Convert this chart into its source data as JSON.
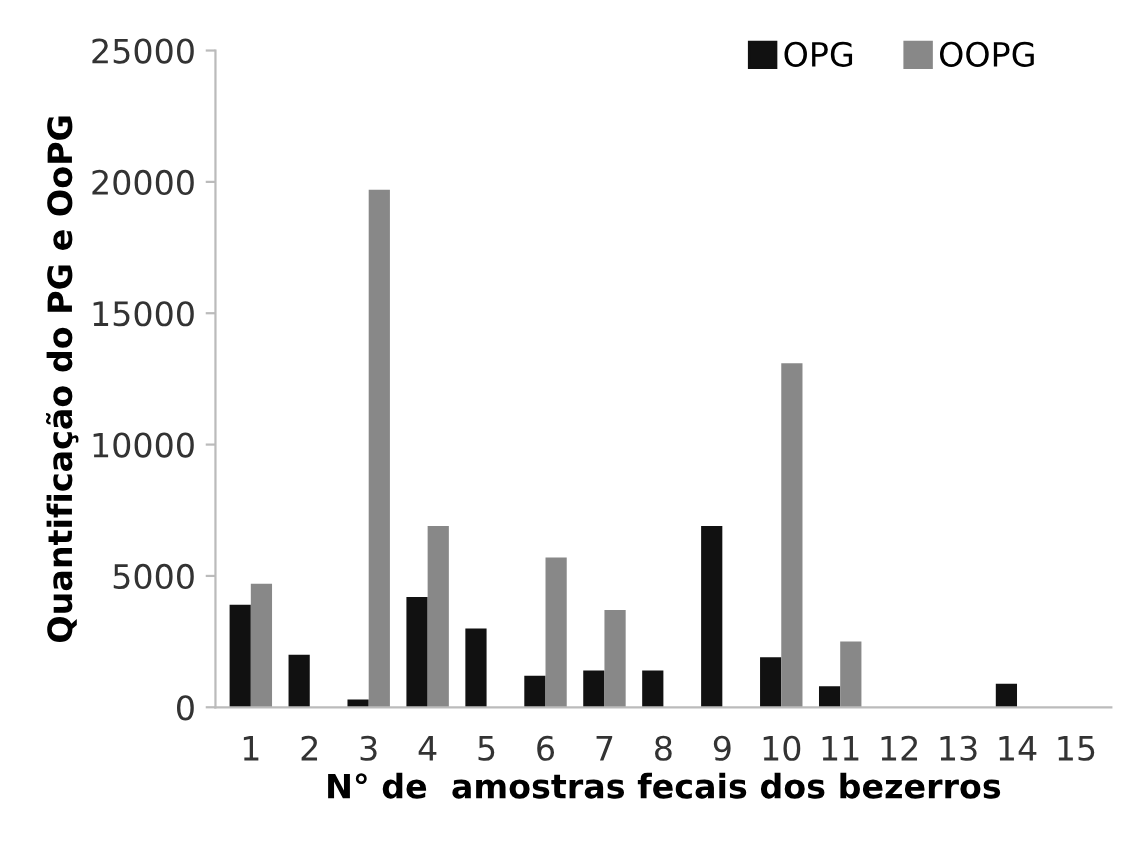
{
  "chart_data": {
    "type": "bar",
    "xlabel": "N° de  amostras fecais dos bezerros",
    "ylabel": "Quantificação do PG e OoPG",
    "categories": [
      "1",
      "2",
      "3",
      "4",
      "5",
      "6",
      "7",
      "8",
      "9",
      "10",
      "11",
      "12",
      "13",
      "14",
      "15"
    ],
    "series": [
      {
        "name": "OPG",
        "color": "#111111",
        "values": [
          3900,
          2000,
          300,
          4200,
          3000,
          1200,
          1400,
          1400,
          6900,
          1900,
          800,
          0,
          0,
          900,
          0
        ]
      },
      {
        "name": "OOPG",
        "color": "#888888",
        "values": [
          4700,
          0,
          19700,
          6900,
          0,
          5700,
          3700,
          0,
          0,
          13100,
          2500,
          0,
          0,
          0,
          0
        ]
      }
    ],
    "ylim": [
      0,
      25000
    ],
    "yticks": [
      0,
      5000,
      10000,
      15000,
      20000,
      25000
    ],
    "grid": false,
    "legend": "top right"
  }
}
